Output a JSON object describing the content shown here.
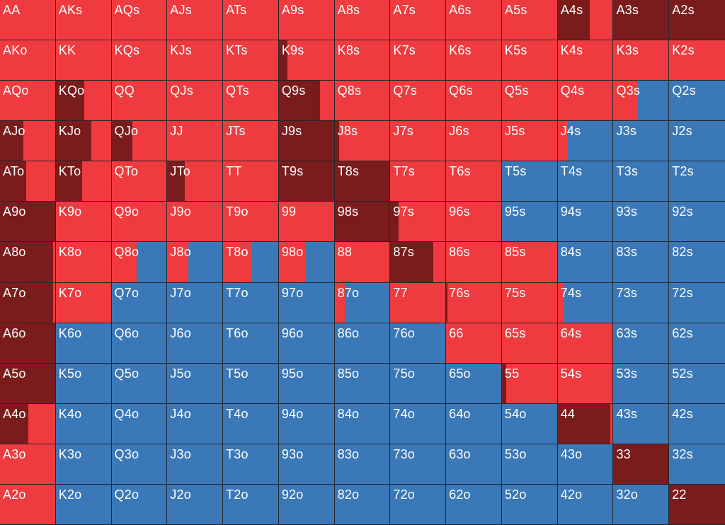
{
  "colors": {
    "raise": "#7a1c1c",
    "call": "#ef3b3f",
    "fold": "#3a78b7"
  },
  "hands": [
    [
      "AA",
      "AKs",
      "AQs",
      "AJs",
      "ATs",
      "A9s",
      "A8s",
      "A7s",
      "A6s",
      "A5s",
      "A4s",
      "A3s",
      "A2s"
    ],
    [
      "AKo",
      "KK",
      "KQs",
      "KJs",
      "KTs",
      "K9s",
      "K8s",
      "K7s",
      "K6s",
      "K5s",
      "K4s",
      "K3s",
      "K2s"
    ],
    [
      "AQo",
      "KQo",
      "QQ",
      "QJs",
      "QTs",
      "Q9s",
      "Q8s",
      "Q7s",
      "Q6s",
      "Q5s",
      "Q4s",
      "Q3s",
      "Q2s"
    ],
    [
      "AJo",
      "KJo",
      "QJo",
      "JJ",
      "JTs",
      "J9s",
      "J8s",
      "J7s",
      "J6s",
      "J5s",
      "J4s",
      "J3s",
      "J2s"
    ],
    [
      "ATo",
      "KTo",
      "QTo",
      "JTo",
      "TT",
      "T9s",
      "T8s",
      "T7s",
      "T6s",
      "T5s",
      "T4s",
      "T3s",
      "T2s"
    ],
    [
      "A9o",
      "K9o",
      "Q9o",
      "J9o",
      "T9o",
      "99",
      "98s",
      "97s",
      "96s",
      "95s",
      "94s",
      "93s",
      "92s"
    ],
    [
      "A8o",
      "K8o",
      "Q8o",
      "J8o",
      "T8o",
      "98o",
      "88",
      "87s",
      "86s",
      "85s",
      "84s",
      "83s",
      "82s"
    ],
    [
      "A7o",
      "K7o",
      "Q7o",
      "J7o",
      "T7o",
      "97o",
      "87o",
      "77",
      "76s",
      "75s",
      "74s",
      "73s",
      "72s"
    ],
    [
      "A6o",
      "K6o",
      "Q6o",
      "J6o",
      "T6o",
      "96o",
      "86o",
      "76o",
      "66",
      "65s",
      "64s",
      "63s",
      "62s"
    ],
    [
      "A5o",
      "K5o",
      "Q5o",
      "J5o",
      "T5o",
      "95o",
      "85o",
      "75o",
      "65o",
      "55",
      "54s",
      "53s",
      "52s"
    ],
    [
      "A4o",
      "K4o",
      "Q4o",
      "J4o",
      "T4o",
      "94o",
      "84o",
      "74o",
      "64o",
      "54o",
      "44",
      "43s",
      "42s"
    ],
    [
      "A3o",
      "K3o",
      "Q3o",
      "J3o",
      "T3o",
      "93o",
      "83o",
      "73o",
      "63o",
      "53o",
      "43o",
      "33",
      "32s"
    ],
    [
      "A2o",
      "K2o",
      "Q2o",
      "J2o",
      "T2o",
      "92o",
      "82o",
      "72o",
      "62o",
      "52o",
      "42o",
      "32o",
      "22"
    ]
  ],
  "frequencies": [
    [
      [
        0,
        1,
        0
      ],
      [
        0,
        1,
        0
      ],
      [
        0,
        1,
        0
      ],
      [
        0,
        1,
        0
      ],
      [
        0,
        1,
        0
      ],
      [
        0,
        1,
        0
      ],
      [
        0,
        1,
        0
      ],
      [
        0,
        1,
        0
      ],
      [
        0,
        1,
        0
      ],
      [
        0,
        1,
        0
      ],
      [
        0.58,
        0.42,
        0
      ],
      [
        1,
        0,
        0
      ],
      [
        1,
        0,
        0
      ]
    ],
    [
      [
        0,
        1,
        0
      ],
      [
        0,
        1,
        0
      ],
      [
        0,
        1,
        0
      ],
      [
        0,
        1,
        0
      ],
      [
        0,
        1,
        0
      ],
      [
        0.15,
        0.85,
        0
      ],
      [
        0,
        1,
        0
      ],
      [
        0,
        1,
        0
      ],
      [
        0,
        1,
        0
      ],
      [
        0,
        1,
        0
      ],
      [
        0,
        1,
        0
      ],
      [
        0,
        1,
        0
      ],
      [
        0,
        1,
        0
      ]
    ],
    [
      [
        0,
        1,
        0
      ],
      [
        0.52,
        0.48,
        0
      ],
      [
        0,
        1,
        0
      ],
      [
        0,
        1,
        0
      ],
      [
        0,
        1,
        0
      ],
      [
        0.75,
        0.25,
        0
      ],
      [
        0,
        1,
        0
      ],
      [
        0,
        1,
        0
      ],
      [
        0,
        1,
        0
      ],
      [
        0,
        1,
        0
      ],
      [
        0,
        1,
        0
      ],
      [
        0,
        0.45,
        0.55
      ],
      [
        0,
        0,
        1
      ]
    ],
    [
      [
        0.42,
        0.58,
        0
      ],
      [
        0.65,
        0.35,
        0
      ],
      [
        0.38,
        0.62,
        0
      ],
      [
        0,
        1,
        0
      ],
      [
        0,
        1,
        0
      ],
      [
        1,
        0,
        0
      ],
      [
        0.08,
        0.92,
        0
      ],
      [
        0,
        1,
        0
      ],
      [
        0,
        1,
        0
      ],
      [
        0,
        1,
        0
      ],
      [
        0,
        0.18,
        0.82
      ],
      [
        0,
        0,
        1
      ],
      [
        0,
        0,
        1
      ]
    ],
    [
      [
        0.48,
        0.52,
        0
      ],
      [
        0.48,
        0.52,
        0
      ],
      [
        0,
        1,
        0
      ],
      [
        0.32,
        0.68,
        0
      ],
      [
        0,
        1,
        0
      ],
      [
        1,
        0,
        0
      ],
      [
        1,
        0,
        0
      ],
      [
        0,
        1,
        0
      ],
      [
        0,
        1,
        0
      ],
      [
        0,
        0,
        1
      ],
      [
        0,
        0,
        1
      ],
      [
        0,
        0,
        1
      ],
      [
        0,
        0,
        1
      ]
    ],
    [
      [
        1,
        0,
        0
      ],
      [
        0,
        1,
        0
      ],
      [
        0,
        1,
        0
      ],
      [
        0,
        1,
        0
      ],
      [
        0,
        1,
        0
      ],
      [
        0,
        1,
        0
      ],
      [
        1,
        0,
        0
      ],
      [
        0.15,
        0.85,
        0
      ],
      [
        0,
        1,
        0
      ],
      [
        0,
        0,
        1
      ],
      [
        0,
        0,
        1
      ],
      [
        0,
        0,
        1
      ],
      [
        0,
        0,
        1
      ]
    ],
    [
      [
        0.97,
        0.03,
        0
      ],
      [
        0,
        1,
        0
      ],
      [
        0,
        0.45,
        0.55
      ],
      [
        0,
        0.38,
        0.62
      ],
      [
        0,
        0.52,
        0.48
      ],
      [
        0,
        0.48,
        0.52
      ],
      [
        0,
        1,
        0
      ],
      [
        0.78,
        0.22,
        0
      ],
      [
        0,
        1,
        0
      ],
      [
        0,
        1,
        0
      ],
      [
        0,
        0,
        1
      ],
      [
        0,
        0,
        1
      ],
      [
        0,
        0,
        1
      ]
    ],
    [
      [
        0.97,
        0.03,
        0
      ],
      [
        0,
        1,
        0
      ],
      [
        0,
        0,
        1
      ],
      [
        0,
        0,
        1
      ],
      [
        0,
        0,
        1
      ],
      [
        0,
        0,
        1
      ],
      [
        0,
        0.18,
        0.82
      ],
      [
        0,
        1,
        0
      ],
      [
        0.03,
        0.97,
        0
      ],
      [
        0,
        1,
        0
      ],
      [
        0,
        0.12,
        0.88
      ],
      [
        0,
        0,
        1
      ],
      [
        0,
        0,
        1
      ]
    ],
    [
      [
        1,
        0,
        0
      ],
      [
        0,
        0,
        1
      ],
      [
        0,
        0,
        1
      ],
      [
        0,
        0,
        1
      ],
      [
        0,
        0,
        1
      ],
      [
        0,
        0,
        1
      ],
      [
        0,
        0,
        1
      ],
      [
        0,
        0,
        1
      ],
      [
        0,
        1,
        0
      ],
      [
        0,
        1,
        0
      ],
      [
        0,
        1,
        0
      ],
      [
        0,
        0,
        1
      ],
      [
        0,
        0,
        1
      ]
    ],
    [
      [
        1,
        0,
        0
      ],
      [
        0,
        0,
        1
      ],
      [
        0,
        0,
        1
      ],
      [
        0,
        0,
        1
      ],
      [
        0,
        0,
        1
      ],
      [
        0,
        0,
        1
      ],
      [
        0,
        0,
        1
      ],
      [
        0,
        0,
        1
      ],
      [
        0,
        0,
        1
      ],
      [
        0.08,
        0.92,
        0
      ],
      [
        0,
        1,
        0
      ],
      [
        0,
        0,
        1
      ],
      [
        0,
        0,
        1
      ]
    ],
    [
      [
        0.52,
        0.48,
        0
      ],
      [
        0,
        0,
        1
      ],
      [
        0,
        0,
        1
      ],
      [
        0,
        0,
        1
      ],
      [
        0,
        0,
        1
      ],
      [
        0,
        0,
        1
      ],
      [
        0,
        0,
        1
      ],
      [
        0,
        0,
        1
      ],
      [
        0,
        0,
        1
      ],
      [
        0,
        0,
        1
      ],
      [
        0.95,
        0.05,
        0
      ],
      [
        0,
        0,
        1
      ],
      [
        0,
        0,
        1
      ]
    ],
    [
      [
        0,
        1,
        0
      ],
      [
        0,
        0,
        1
      ],
      [
        0,
        0,
        1
      ],
      [
        0,
        0,
        1
      ],
      [
        0,
        0,
        1
      ],
      [
        0,
        0,
        1
      ],
      [
        0,
        0,
        1
      ],
      [
        0,
        0,
        1
      ],
      [
        0,
        0,
        1
      ],
      [
        0,
        0,
        1
      ],
      [
        0,
        0,
        1
      ],
      [
        1,
        0,
        0
      ],
      [
        0,
        0,
        1
      ]
    ],
    [
      [
        0,
        1,
        0
      ],
      [
        0,
        0,
        1
      ],
      [
        0,
        0,
        1
      ],
      [
        0,
        0,
        1
      ],
      [
        0,
        0,
        1
      ],
      [
        0,
        0,
        1
      ],
      [
        0,
        0,
        1
      ],
      [
        0,
        0,
        1
      ],
      [
        0,
        0,
        1
      ],
      [
        0,
        0,
        1
      ],
      [
        0,
        0,
        1
      ],
      [
        0,
        0,
        1
      ],
      [
        1,
        0,
        0
      ]
    ]
  ]
}
